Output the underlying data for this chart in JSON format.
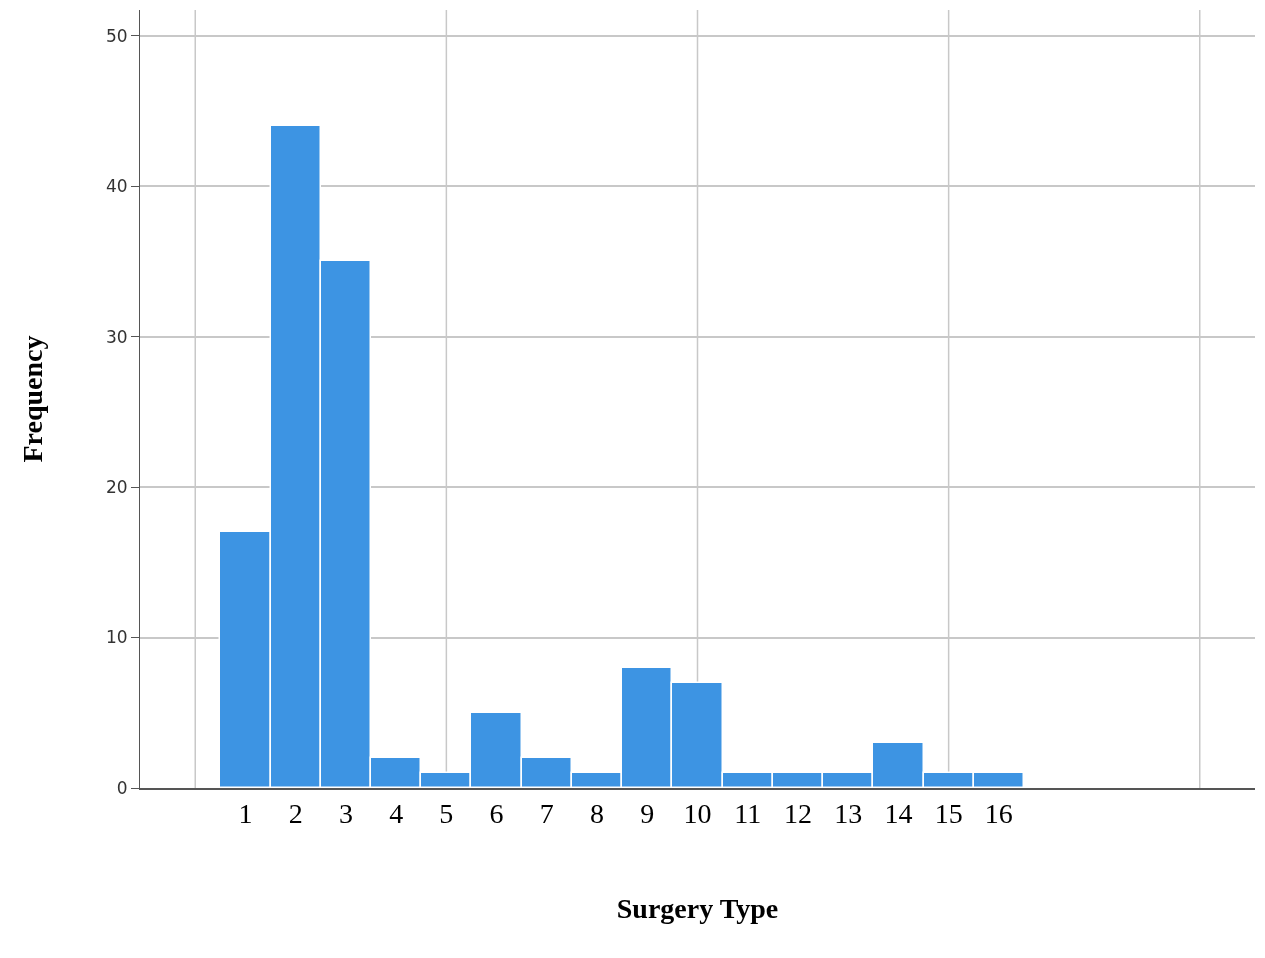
{
  "chart_data": {
    "type": "histogram",
    "xlabel": "Surgery Type",
    "ylabel": "Frequency",
    "bins": [
      0.5,
      1.5,
      2.5,
      3.5,
      4.5,
      5.5,
      6.5,
      7.5,
      8.5,
      9.5,
      10.5,
      11.5,
      12.5,
      13.5,
      14.5,
      15.5,
      16.5
    ],
    "values": [
      17,
      44,
      35,
      2,
      1,
      5,
      2,
      1,
      8,
      7,
      1,
      1,
      1,
      3,
      1,
      1
    ],
    "color": "#3d94e3",
    "xlim": [
      -1.1,
      21.1
    ],
    "xticks": [
      {
        "value": 1,
        "label": "1"
      },
      {
        "value": 2,
        "label": "2"
      },
      {
        "value": 3,
        "label": "3"
      },
      {
        "value": 4,
        "label": "4"
      },
      {
        "value": 5,
        "label": "5"
      },
      {
        "value": 6,
        "label": "6"
      },
      {
        "value": 7,
        "label": "7"
      },
      {
        "value": 8,
        "label": "8"
      },
      {
        "value": 9,
        "label": "9"
      },
      {
        "value": 10,
        "label": "10"
      },
      {
        "value": 11,
        "label": "11"
      },
      {
        "value": 12,
        "label": "12"
      },
      {
        "value": 13,
        "label": "13"
      },
      {
        "value": 14,
        "label": "14"
      },
      {
        "value": 15,
        "label": "15"
      },
      {
        "value": 16,
        "label": "16"
      }
    ],
    "ylim": [
      0,
      51.7
    ],
    "yticks": [
      0,
      10,
      20,
      30,
      40,
      50
    ],
    "grid": "y",
    "ref_lines": [
      {
        "axis": "x",
        "value": 0,
        "color": "#c8c8c8"
      },
      {
        "axis": "x",
        "value": 5,
        "color": "#c8c8c8"
      },
      {
        "axis": "x",
        "value": 10,
        "color": "#c8c8c8"
      },
      {
        "axis": "x",
        "value": 15,
        "color": "#c8c8c8"
      },
      {
        "axis": "x",
        "value": 20,
        "color": "#c8c8c8"
      }
    ]
  }
}
